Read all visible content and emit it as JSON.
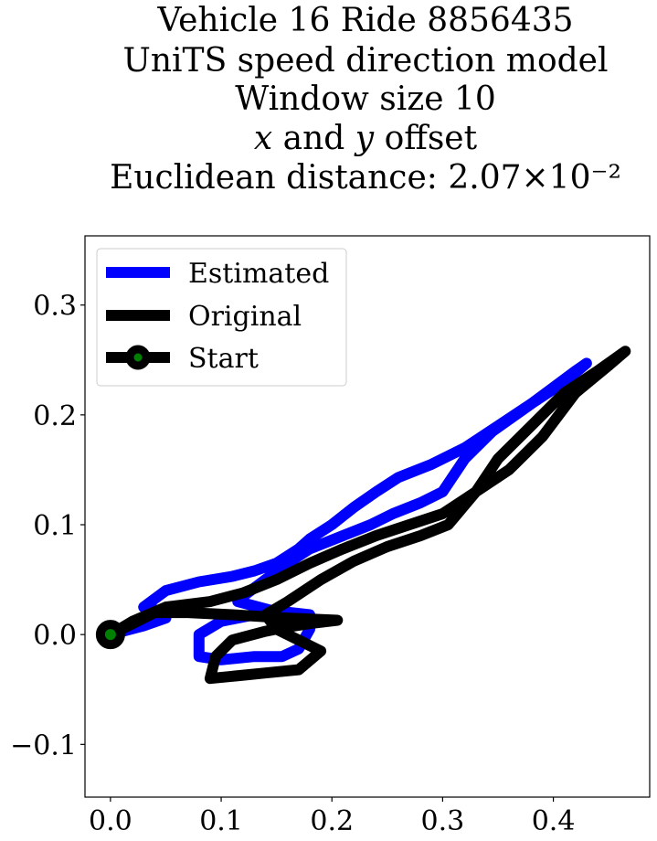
{
  "chart_data": {
    "type": "line",
    "title_lines": [
      "Vehicle 16 Ride 8856435",
      "UniTS speed direction model",
      "Window size 10",
      "x and y offset",
      "Euclidean distance: 2.07×10⁻²"
    ],
    "xlabel": "",
    "ylabel": "",
    "xlim": [
      -0.023,
      0.487
    ],
    "ylim": [
      -0.148,
      0.363
    ],
    "x_ticks": [
      0.0,
      0.1,
      0.2,
      0.3,
      0.4
    ],
    "x_tick_labels": [
      "0.0",
      "0.1",
      "0.2",
      "0.3",
      "0.4"
    ],
    "y_ticks": [
      -0.1,
      0.0,
      0.1,
      0.2,
      0.3
    ],
    "y_tick_labels": [
      "−0.1",
      "0.0",
      "0.1",
      "0.2",
      "0.3"
    ],
    "grid": false,
    "legend": {
      "placement": "upper-left",
      "entries": [
        {
          "label": "Estimated",
          "color": "#0000ff",
          "marker": "none"
        },
        {
          "label": "Original",
          "color": "#000000",
          "marker": "none"
        },
        {
          "label": "Start",
          "color": "#000000",
          "marker": "circle",
          "marker_face": "#008000"
        }
      ]
    },
    "series": [
      {
        "name": "Estimated",
        "color": "#0000ff",
        "points": [
          [
            0.0,
            0.0
          ],
          [
            0.03,
            0.008
          ],
          [
            0.05,
            0.015
          ],
          [
            0.05,
            0.02
          ],
          [
            0.03,
            0.025
          ],
          [
            0.05,
            0.04
          ],
          [
            0.08,
            0.048
          ],
          [
            0.11,
            0.053
          ],
          [
            0.13,
            0.058
          ],
          [
            0.15,
            0.065
          ],
          [
            0.17,
            0.078
          ],
          [
            0.18,
            0.087
          ],
          [
            0.2,
            0.1
          ],
          [
            0.22,
            0.116
          ],
          [
            0.24,
            0.13
          ],
          [
            0.26,
            0.143
          ],
          [
            0.29,
            0.155
          ],
          [
            0.32,
            0.17
          ],
          [
            0.35,
            0.19
          ],
          [
            0.38,
            0.21
          ],
          [
            0.4,
            0.225
          ],
          [
            0.42,
            0.24
          ],
          [
            0.43,
            0.247
          ],
          [
            0.41,
            0.23
          ],
          [
            0.38,
            0.21
          ],
          [
            0.345,
            0.185
          ],
          [
            0.32,
            0.16
          ],
          [
            0.3,
            0.13
          ],
          [
            0.28,
            0.12
          ],
          [
            0.255,
            0.11
          ],
          [
            0.235,
            0.1
          ],
          [
            0.21,
            0.09
          ],
          [
            0.18,
            0.078
          ],
          [
            0.16,
            0.065
          ],
          [
            0.14,
            0.05
          ],
          [
            0.12,
            0.035
          ],
          [
            0.115,
            0.03
          ],
          [
            0.145,
            0.022
          ],
          [
            0.18,
            0.018
          ],
          [
            0.18,
            0.005
          ],
          [
            0.17,
            -0.013
          ],
          [
            0.155,
            -0.02
          ],
          [
            0.13,
            -0.02
          ],
          [
            0.1,
            -0.023
          ],
          [
            0.08,
            -0.02
          ],
          [
            0.08,
            0.0
          ],
          [
            0.1,
            0.012
          ],
          [
            0.13,
            0.018
          ],
          [
            0.16,
            0.02
          ],
          [
            0.18,
            0.018
          ]
        ]
      },
      {
        "name": "Original",
        "color": "#000000",
        "points": [
          [
            0.0,
            0.0
          ],
          [
            0.02,
            0.012
          ],
          [
            0.05,
            0.025
          ],
          [
            0.09,
            0.03
          ],
          [
            0.12,
            0.038
          ],
          [
            0.15,
            0.05
          ],
          [
            0.18,
            0.065
          ],
          [
            0.21,
            0.078
          ],
          [
            0.24,
            0.09
          ],
          [
            0.27,
            0.1
          ],
          [
            0.3,
            0.11
          ],
          [
            0.33,
            0.13
          ],
          [
            0.36,
            0.15
          ],
          [
            0.39,
            0.18
          ],
          [
            0.42,
            0.22
          ],
          [
            0.45,
            0.245
          ],
          [
            0.465,
            0.258
          ],
          [
            0.44,
            0.24
          ],
          [
            0.41,
            0.22
          ],
          [
            0.38,
            0.19
          ],
          [
            0.35,
            0.16
          ],
          [
            0.33,
            0.13
          ],
          [
            0.305,
            0.1
          ],
          [
            0.28,
            0.09
          ],
          [
            0.25,
            0.08
          ],
          [
            0.22,
            0.067
          ],
          [
            0.19,
            0.05
          ],
          [
            0.16,
            0.03
          ],
          [
            0.14,
            0.018
          ],
          [
            0.15,
            0.005
          ],
          [
            0.17,
            -0.005
          ],
          [
            0.19,
            -0.015
          ],
          [
            0.17,
            -0.032
          ],
          [
            0.14,
            -0.035
          ],
          [
            0.12,
            -0.037
          ],
          [
            0.09,
            -0.04
          ],
          [
            0.095,
            -0.02
          ],
          [
            0.11,
            -0.005
          ],
          [
            0.14,
            0.003
          ],
          [
            0.16,
            0.007
          ],
          [
            0.18,
            0.01
          ],
          [
            0.205,
            0.013
          ],
          [
            0.16,
            0.015
          ],
          [
            0.11,
            0.018
          ],
          [
            0.07,
            0.02
          ],
          [
            0.04,
            0.02
          ],
          [
            0.02,
            0.01
          ],
          [
            0.0,
            0.0
          ]
        ]
      }
    ],
    "start_point": {
      "x": 0.0,
      "y": 0.0,
      "label": "Start",
      "edge_color": "#000000",
      "face_color": "#008000"
    }
  }
}
